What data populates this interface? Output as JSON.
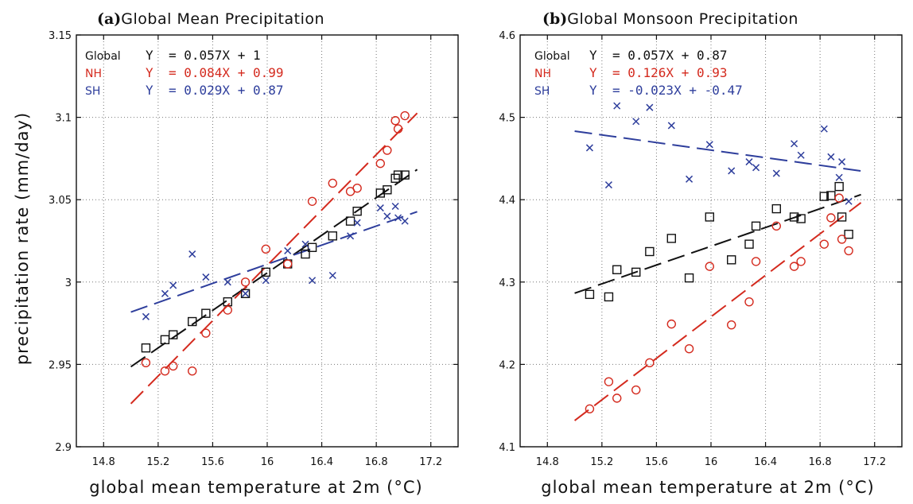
{
  "ylabel": "precipitation rate (mm/day)",
  "xlabel": "global mean temperature at 2m (°C)",
  "colors": {
    "Global": "#111111",
    "NH": "#d42a1e",
    "SH": "#2e3e9c"
  },
  "chart_data": [
    {
      "type": "scatter",
      "panel_tag": "(a)",
      "title": "Global Mean Precipitation",
      "xlabel": "global mean temperature at 2m (°C)",
      "ylabel": "precipitation rate (mm/day)",
      "xlim": [
        14.6,
        17.4
      ],
      "ylim": [
        2.9,
        3.15
      ],
      "xticks": [
        "14.8",
        "15.2",
        "15.6",
        "16",
        "16.4",
        "16.8",
        "17.2"
      ],
      "xtick_values": [
        14.8,
        15.2,
        15.6,
        16.0,
        16.4,
        16.8,
        17.2
      ],
      "yticks": [
        "2.9",
        "2.95",
        "3",
        "3.05",
        "3.1",
        "3.15"
      ],
      "ytick_values": [
        2.9,
        2.95,
        3.0,
        3.05,
        3.1,
        3.15
      ],
      "grid": true,
      "series": [
        {
          "name": "Global",
          "marker": "square",
          "color": "#111111",
          "equation_prefix": "Y",
          "equation": "= 0.057X + 1",
          "fit": {
            "slope": 0.057,
            "x": [
              15.0,
              17.1
            ]
          },
          "x": [
            15.11,
            15.25,
            15.31,
            15.45,
            15.55,
            15.71,
            15.84,
            15.99,
            16.15,
            16.28,
            16.33,
            16.48,
            16.61,
            16.66,
            16.83,
            16.88,
            16.94,
            16.96,
            17.01
          ],
          "y": [
            2.96,
            2.965,
            2.968,
            2.976,
            2.981,
            2.988,
            2.993,
            3.006,
            3.011,
            3.017,
            3.021,
            3.028,
            3.037,
            3.043,
            3.054,
            3.056,
            3.063,
            3.065,
            3.065
          ]
        },
        {
          "name": "NH",
          "marker": "circle",
          "color": "#d42a1e",
          "equation_prefix": "Y",
          "equation": "= 0.084X + 0.99",
          "fit": {
            "slope": 0.084,
            "x": [
              15.0,
              17.1
            ]
          },
          "x": [
            15.11,
            15.25,
            15.31,
            15.45,
            15.55,
            15.71,
            15.84,
            15.99,
            16.15,
            16.33,
            16.48,
            16.61,
            16.66,
            16.83,
            16.88,
            16.94,
            16.96,
            17.01
          ],
          "y": [
            2.951,
            2.946,
            2.949,
            2.946,
            2.969,
            2.983,
            3.0,
            3.02,
            3.011,
            3.049,
            3.06,
            3.055,
            3.057,
            3.072,
            3.08,
            3.098,
            3.093,
            3.101
          ]
        },
        {
          "name": "SH",
          "marker": "x",
          "color": "#2e3e9c",
          "equation_prefix": "Y",
          "equation": "= 0.029X + 0.87",
          "fit": {
            "slope": 0.029,
            "x": [
              15.0,
              17.1
            ]
          },
          "x": [
            15.11,
            15.25,
            15.31,
            15.45,
            15.55,
            15.71,
            15.84,
            15.99,
            16.15,
            16.28,
            16.33,
            16.48,
            16.61,
            16.66,
            16.83,
            16.88,
            16.94,
            16.96,
            17.01
          ],
          "y": [
            2.979,
            2.993,
            2.998,
            3.017,
            3.003,
            3.0,
            2.993,
            3.001,
            3.019,
            3.023,
            3.001,
            3.004,
            3.028,
            3.036,
            3.045,
            3.04,
            3.046,
            3.039,
            3.037
          ]
        }
      ]
    },
    {
      "type": "scatter",
      "panel_tag": "(b)",
      "title": "Global Monsoon Precipitation",
      "xlabel": "global mean temperature at 2m (°C)",
      "ylabel": "",
      "xlim": [
        14.6,
        17.4
      ],
      "ylim": [
        4.1,
        4.6
      ],
      "xticks": [
        "14.8",
        "15.2",
        "15.6",
        "16",
        "16.4",
        "16.8",
        "17.2"
      ],
      "xtick_values": [
        14.8,
        15.2,
        15.6,
        16.0,
        16.4,
        16.8,
        17.2
      ],
      "yticks": [
        "4.1",
        "4.2",
        "4.3",
        "4.4",
        "4.5",
        "4.6"
      ],
      "ytick_values": [
        4.1,
        4.2,
        4.3,
        4.4,
        4.5,
        4.6
      ],
      "grid": true,
      "series": [
        {
          "name": "Global",
          "marker": "square",
          "color": "#111111",
          "equation_prefix": "Y",
          "equation": "= 0.057X + 0.87",
          "fit": {
            "slope": 0.057,
            "x": [
              15.0,
              17.1
            ]
          },
          "x": [
            15.11,
            15.25,
            15.31,
            15.45,
            15.55,
            15.71,
            15.84,
            15.99,
            16.15,
            16.28,
            16.33,
            16.48,
            16.61,
            16.66,
            16.83,
            16.88,
            16.94,
            16.96,
            17.01
          ],
          "y": [
            4.285,
            4.282,
            4.315,
            4.312,
            4.337,
            4.353,
            4.305,
            4.379,
            4.327,
            4.346,
            4.368,
            4.389,
            4.379,
            4.377,
            4.404,
            4.405,
            4.416,
            4.379,
            4.358
          ]
        },
        {
          "name": "NH",
          "marker": "circle",
          "color": "#d42a1e",
          "equation_prefix": "Y",
          "equation": "= 0.126X + 0.93",
          "fit": {
            "slope": 0.126,
            "x": [
              15.0,
              17.1
            ]
          },
          "x": [
            15.11,
            15.25,
            15.31,
            15.45,
            15.55,
            15.71,
            15.84,
            15.99,
            16.15,
            16.28,
            16.33,
            16.48,
            16.61,
            16.66,
            16.83,
            16.88,
            16.94,
            16.96,
            17.01
          ],
          "y": [
            4.146,
            4.179,
            4.159,
            4.169,
            4.202,
            4.249,
            4.219,
            4.319,
            4.248,
            4.276,
            4.325,
            4.368,
            4.319,
            4.325,
            4.346,
            4.378,
            4.402,
            4.352,
            4.338
          ]
        },
        {
          "name": "SH",
          "marker": "x",
          "color": "#2e3e9c",
          "equation_prefix": "Y",
          "equation": "= -0.023X + -0.47",
          "fit": {
            "slope": -0.023,
            "x": [
              15.0,
              17.1
            ]
          },
          "x": [
            15.11,
            15.25,
            15.31,
            15.45,
            15.55,
            15.71,
            15.84,
            15.99,
            16.15,
            16.28,
            16.33,
            16.48,
            16.61,
            16.66,
            16.83,
            16.88,
            16.94,
            16.96,
            17.01
          ],
          "y": [
            4.463,
            4.418,
            4.514,
            4.495,
            4.512,
            4.49,
            4.425,
            4.467,
            4.435,
            4.446,
            4.439,
            4.432,
            4.468,
            4.454,
            4.486,
            4.452,
            4.427,
            4.446,
            4.398
          ]
        }
      ]
    }
  ]
}
